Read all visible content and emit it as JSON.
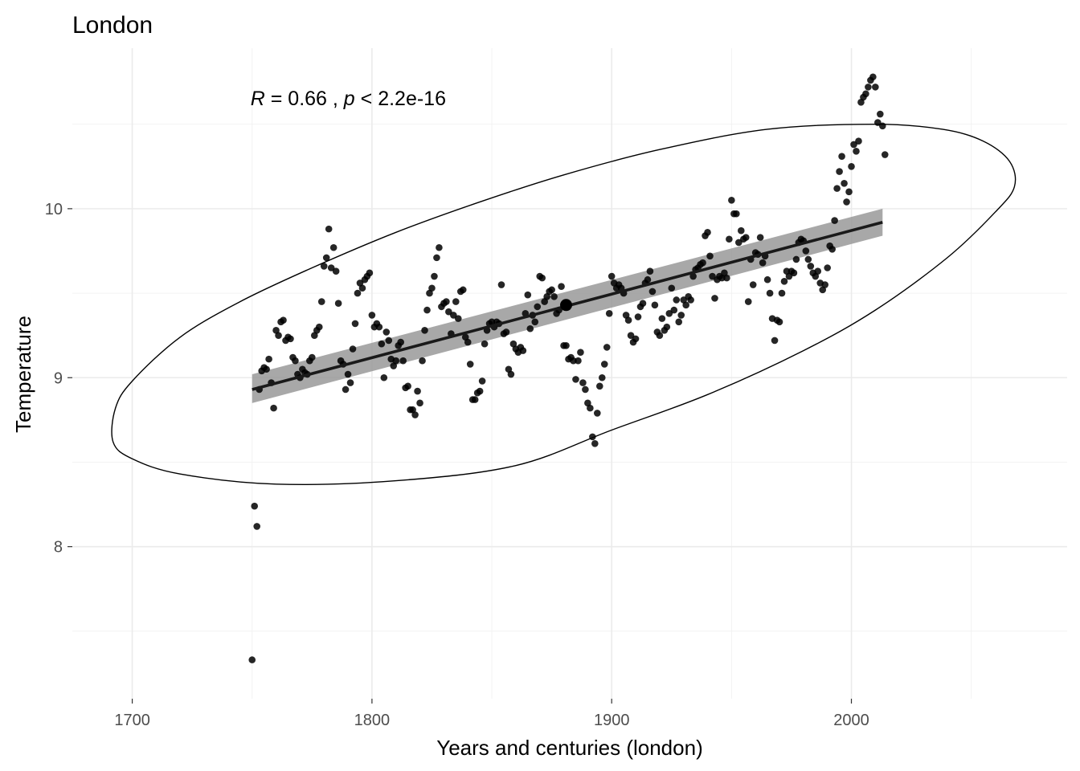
{
  "chart_data": {
    "type": "scatter",
    "title": "London",
    "xlabel": "Years and centuries (london)",
    "ylabel": "Temperature",
    "xlim": [
      1675,
      2090
    ],
    "ylim": [
      7.1,
      10.95
    ],
    "xticks": [
      1700,
      1800,
      1900,
      2000
    ],
    "yticks": [
      8,
      9,
      10
    ],
    "grid": true,
    "annotation": {
      "r_label": "R",
      "r_text": " = 0.66 , ",
      "p_label": "p",
      "p_text": " < 2.2e-16",
      "x": 1750,
      "y": 10.65
    },
    "regression": {
      "x": [
        1750,
        2013
      ],
      "y": [
        8.93,
        9.92
      ],
      "ci_lower": [
        8.85,
        9.84
      ],
      "ci_upper": [
        9.02,
        10.0
      ]
    },
    "mean_point": {
      "x": 1881,
      "y": 9.43
    },
    "ellipse": {
      "points": [
        [
          2068,
          10.13
        ],
        [
          2066,
          10.28
        ],
        [
          2055,
          10.4
        ],
        [
          2038,
          10.47
        ],
        [
          2010,
          10.5
        ],
        [
          1965,
          10.47
        ],
        [
          1920,
          10.35
        ],
        [
          1880,
          10.2
        ],
        [
          1845,
          10.04
        ],
        [
          1810,
          9.86
        ],
        [
          1775,
          9.65
        ],
        [
          1745,
          9.45
        ],
        [
          1720,
          9.24
        ],
        [
          1700,
          8.98
        ],
        [
          1693,
          8.82
        ],
        [
          1692,
          8.62
        ],
        [
          1700,
          8.52
        ],
        [
          1720,
          8.43
        ],
        [
          1760,
          8.37
        ],
        [
          1810,
          8.39
        ],
        [
          1860,
          8.48
        ],
        [
          1900,
          8.69
        ],
        [
          1940,
          8.9
        ],
        [
          1980,
          9.16
        ],
        [
          2010,
          9.4
        ],
        [
          2040,
          9.71
        ],
        [
          2060,
          9.98
        ]
      ]
    },
    "points": [
      [
        1750,
        7.33
      ],
      [
        1751,
        8.24
      ],
      [
        1752,
        8.12
      ],
      [
        1753,
        8.93
      ],
      [
        1754,
        9.04
      ],
      [
        1755,
        9.06
      ],
      [
        1756,
        9.05
      ],
      [
        1757,
        9.11
      ],
      [
        1758,
        8.97
      ],
      [
        1759,
        8.82
      ],
      [
        1760,
        9.28
      ],
      [
        1761,
        9.25
      ],
      [
        1762,
        9.33
      ],
      [
        1763,
        9.34
      ],
      [
        1764,
        9.22
      ],
      [
        1765,
        9.24
      ],
      [
        1766,
        9.23
      ],
      [
        1767,
        9.12
      ],
      [
        1768,
        9.1
      ],
      [
        1769,
        9.02
      ],
      [
        1770,
        9.0
      ],
      [
        1771,
        9.05
      ],
      [
        1772,
        9.03
      ],
      [
        1773,
        9.02
      ],
      [
        1774,
        9.1
      ],
      [
        1775,
        9.12
      ],
      [
        1776,
        9.25
      ],
      [
        1777,
        9.28
      ],
      [
        1778,
        9.3
      ],
      [
        1779,
        9.45
      ],
      [
        1780,
        9.66
      ],
      [
        1781,
        9.71
      ],
      [
        1782,
        9.88
      ],
      [
        1783,
        9.65
      ],
      [
        1784,
        9.77
      ],
      [
        1785,
        9.63
      ],
      [
        1786,
        9.44
      ],
      [
        1787,
        9.1
      ],
      [
        1788,
        9.08
      ],
      [
        1789,
        8.93
      ],
      [
        1790,
        9.02
      ],
      [
        1791,
        8.97
      ],
      [
        1792,
        9.17
      ],
      [
        1793,
        9.32
      ],
      [
        1794,
        9.5
      ],
      [
        1795,
        9.56
      ],
      [
        1796,
        9.53
      ],
      [
        1797,
        9.58
      ],
      [
        1798,
        9.6
      ],
      [
        1799,
        9.62
      ],
      [
        1800,
        9.37
      ],
      [
        1801,
        9.3
      ],
      [
        1802,
        9.32
      ],
      [
        1803,
        9.3
      ],
      [
        1804,
        9.2
      ],
      [
        1805,
        9.0
      ],
      [
        1806,
        9.27
      ],
      [
        1807,
        9.22
      ],
      [
        1808,
        9.11
      ],
      [
        1809,
        9.07
      ],
      [
        1810,
        9.1
      ],
      [
        1811,
        9.19
      ],
      [
        1812,
        9.21
      ],
      [
        1813,
        9.1
      ],
      [
        1814,
        8.94
      ],
      [
        1815,
        8.95
      ],
      [
        1816,
        8.81
      ],
      [
        1817,
        8.81
      ],
      [
        1818,
        8.78
      ],
      [
        1819,
        8.92
      ],
      [
        1820,
        8.85
      ],
      [
        1821,
        9.1
      ],
      [
        1822,
        9.28
      ],
      [
        1823,
        9.4
      ],
      [
        1824,
        9.5
      ],
      [
        1825,
        9.53
      ],
      [
        1826,
        9.6
      ],
      [
        1827,
        9.71
      ],
      [
        1828,
        9.77
      ],
      [
        1829,
        9.42
      ],
      [
        1830,
        9.44
      ],
      [
        1831,
        9.45
      ],
      [
        1832,
        9.39
      ],
      [
        1833,
        9.26
      ],
      [
        1834,
        9.37
      ],
      [
        1835,
        9.45
      ],
      [
        1836,
        9.35
      ],
      [
        1837,
        9.51
      ],
      [
        1838,
        9.52
      ],
      [
        1839,
        9.24
      ],
      [
        1840,
        9.21
      ],
      [
        1841,
        9.08
      ],
      [
        1842,
        8.87
      ],
      [
        1843,
        8.87
      ],
      [
        1844,
        8.91
      ],
      [
        1845,
        8.92
      ],
      [
        1846,
        8.98
      ],
      [
        1847,
        9.2
      ],
      [
        1848,
        9.28
      ],
      [
        1849,
        9.32
      ],
      [
        1850,
        9.33
      ],
      [
        1851,
        9.3
      ],
      [
        1852,
        9.33
      ],
      [
        1853,
        9.32
      ],
      [
        1854,
        9.55
      ],
      [
        1855,
        9.26
      ],
      [
        1856,
        9.27
      ],
      [
        1857,
        9.05
      ],
      [
        1858,
        9.02
      ],
      [
        1859,
        9.2
      ],
      [
        1860,
        9.17
      ],
      [
        1861,
        9.15
      ],
      [
        1862,
        9.18
      ],
      [
        1863,
        9.16
      ],
      [
        1864,
        9.38
      ],
      [
        1865,
        9.49
      ],
      [
        1866,
        9.29
      ],
      [
        1867,
        9.37
      ],
      [
        1868,
        9.33
      ],
      [
        1869,
        9.42
      ],
      [
        1870,
        9.6
      ],
      [
        1871,
        9.59
      ],
      [
        1872,
        9.45
      ],
      [
        1873,
        9.48
      ],
      [
        1874,
        9.51
      ],
      [
        1875,
        9.52
      ],
      [
        1876,
        9.48
      ],
      [
        1877,
        9.38
      ],
      [
        1878,
        9.4
      ],
      [
        1879,
        9.54
      ],
      [
        1880,
        9.19
      ],
      [
        1881,
        9.19
      ],
      [
        1882,
        9.11
      ],
      [
        1883,
        9.12
      ],
      [
        1884,
        9.1
      ],
      [
        1885,
        8.99
      ],
      [
        1886,
        9.1
      ],
      [
        1887,
        9.15
      ],
      [
        1888,
        8.97
      ],
      [
        1889,
        8.93
      ],
      [
        1890,
        8.85
      ],
      [
        1891,
        8.82
      ],
      [
        1892,
        8.65
      ],
      [
        1893,
        8.61
      ],
      [
        1894,
        8.79
      ],
      [
        1895,
        8.95
      ],
      [
        1896,
        9.0
      ],
      [
        1897,
        9.08
      ],
      [
        1898,
        9.18
      ],
      [
        1899,
        9.38
      ],
      [
        1900,
        9.6
      ],
      [
        1901,
        9.56
      ],
      [
        1902,
        9.53
      ],
      [
        1903,
        9.55
      ],
      [
        1904,
        9.53
      ],
      [
        1905,
        9.5
      ],
      [
        1906,
        9.37
      ],
      [
        1907,
        9.34
      ],
      [
        1908,
        9.25
      ],
      [
        1909,
        9.21
      ],
      [
        1910,
        9.23
      ],
      [
        1911,
        9.36
      ],
      [
        1912,
        9.42
      ],
      [
        1913,
        9.44
      ],
      [
        1914,
        9.56
      ],
      [
        1915,
        9.58
      ],
      [
        1916,
        9.63
      ],
      [
        1917,
        9.51
      ],
      [
        1918,
        9.43
      ],
      [
        1919,
        9.27
      ],
      [
        1920,
        9.25
      ],
      [
        1921,
        9.35
      ],
      [
        1922,
        9.28
      ],
      [
        1923,
        9.3
      ],
      [
        1924,
        9.38
      ],
      [
        1925,
        9.53
      ],
      [
        1926,
        9.4
      ],
      [
        1927,
        9.46
      ],
      [
        1928,
        9.33
      ],
      [
        1929,
        9.37
      ],
      [
        1930,
        9.46
      ],
      [
        1931,
        9.43
      ],
      [
        1932,
        9.48
      ],
      [
        1933,
        9.46
      ],
      [
        1934,
        9.6
      ],
      [
        1935,
        9.64
      ],
      [
        1936,
        9.65
      ],
      [
        1937,
        9.67
      ],
      [
        1938,
        9.68
      ],
      [
        1939,
        9.84
      ],
      [
        1940,
        9.86
      ],
      [
        1941,
        9.72
      ],
      [
        1942,
        9.6
      ],
      [
        1943,
        9.47
      ],
      [
        1944,
        9.58
      ],
      [
        1945,
        9.6
      ],
      [
        1946,
        9.59
      ],
      [
        1947,
        9.62
      ],
      [
        1948,
        9.59
      ],
      [
        1949,
        9.82
      ],
      [
        1950,
        10.05
      ],
      [
        1951,
        9.97
      ],
      [
        1952,
        9.97
      ],
      [
        1953,
        9.8
      ],
      [
        1954,
        9.87
      ],
      [
        1955,
        9.82
      ],
      [
        1956,
        9.83
      ],
      [
        1957,
        9.45
      ],
      [
        1958,
        9.7
      ],
      [
        1959,
        9.55
      ],
      [
        1960,
        9.74
      ],
      [
        1961,
        9.73
      ],
      [
        1962,
        9.83
      ],
      [
        1963,
        9.68
      ],
      [
        1964,
        9.72
      ],
      [
        1965,
        9.58
      ],
      [
        1966,
        9.5
      ],
      [
        1967,
        9.35
      ],
      [
        1968,
        9.22
      ],
      [
        1969,
        9.34
      ],
      [
        1970,
        9.33
      ],
      [
        1971,
        9.5
      ],
      [
        1972,
        9.57
      ],
      [
        1973,
        9.63
      ],
      [
        1974,
        9.6
      ],
      [
        1975,
        9.63
      ],
      [
        1976,
        9.62
      ],
      [
        1977,
        9.7
      ],
      [
        1978,
        9.8
      ],
      [
        1979,
        9.82
      ],
      [
        1980,
        9.81
      ],
      [
        1981,
        9.75
      ],
      [
        1982,
        9.7
      ],
      [
        1983,
        9.66
      ],
      [
        1984,
        9.62
      ],
      [
        1985,
        9.6
      ],
      [
        1986,
        9.63
      ],
      [
        1987,
        9.56
      ],
      [
        1988,
        9.52
      ],
      [
        1989,
        9.55
      ],
      [
        1990,
        9.65
      ],
      [
        1991,
        9.78
      ],
      [
        1992,
        9.76
      ],
      [
        1993,
        9.93
      ],
      [
        1994,
        10.12
      ],
      [
        1995,
        10.22
      ],
      [
        1996,
        10.31
      ],
      [
        1997,
        10.15
      ],
      [
        1998,
        10.04
      ],
      [
        1999,
        10.1
      ],
      [
        2000,
        10.25
      ],
      [
        2001,
        10.38
      ],
      [
        2002,
        10.34
      ],
      [
        2003,
        10.4
      ],
      [
        2004,
        10.63
      ],
      [
        2005,
        10.66
      ],
      [
        2006,
        10.68
      ],
      [
        2007,
        10.72
      ],
      [
        2008,
        10.76
      ],
      [
        2009,
        10.78
      ],
      [
        2010,
        10.72
      ],
      [
        2011,
        10.51
      ],
      [
        2012,
        10.56
      ],
      [
        2013,
        10.49
      ],
      [
        2014,
        10.32
      ]
    ]
  }
}
